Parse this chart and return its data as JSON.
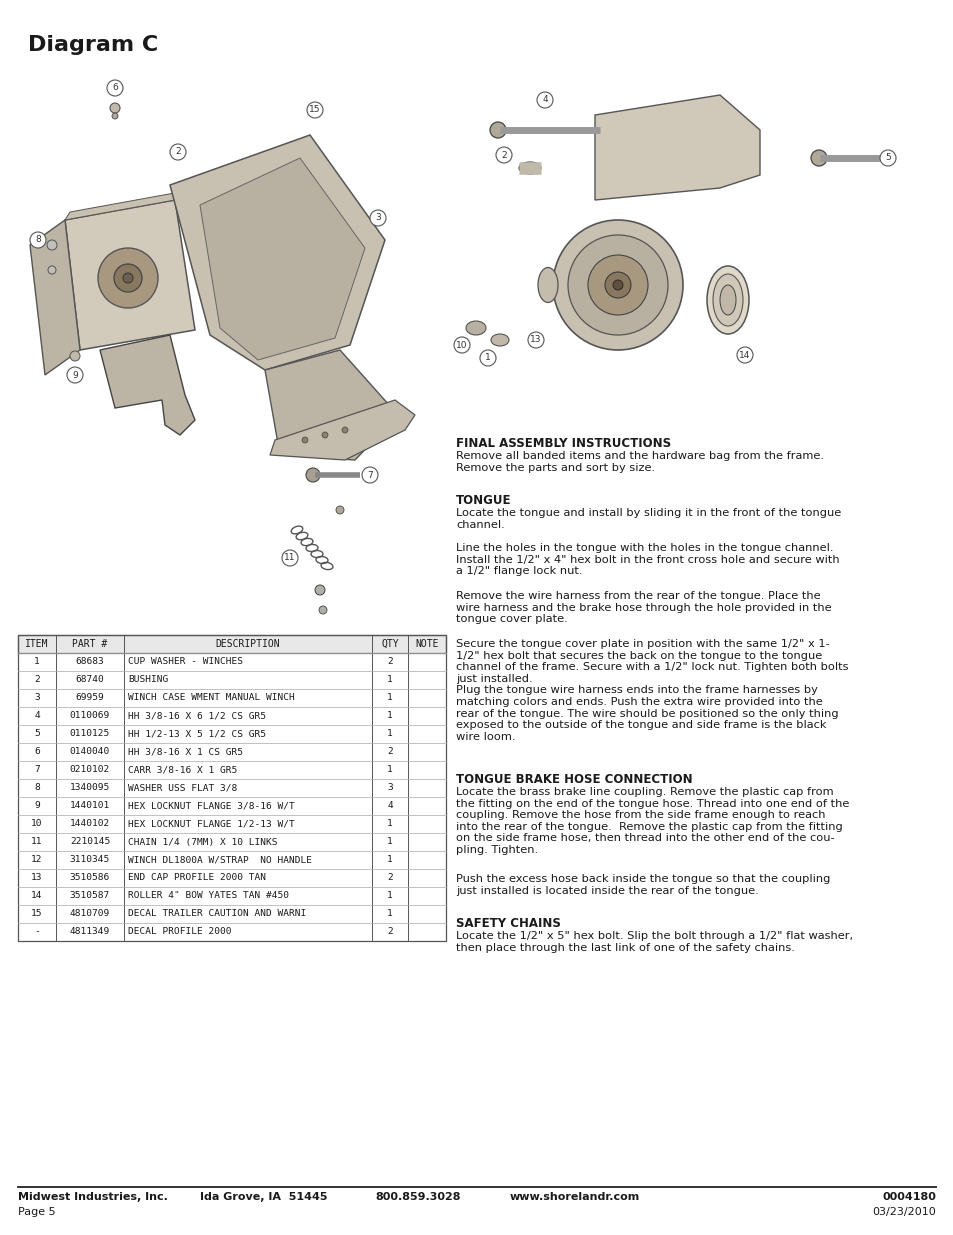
{
  "title": "Diagram C",
  "bg_color": "#ffffff",
  "footer_left1": "Midwest Industries, Inc.",
  "footer_left2": "Ida Grove, IA  51445",
  "footer_left3": "800.859.3028",
  "footer_left4": "www.shorelandr.com",
  "footer_right1": "0004180",
  "footer_right2": "03/23/2010",
  "footer_page": "Page 5",
  "table_headers": [
    "ITEM",
    "PART #",
    "DESCRIPTION",
    "QTY",
    "NOTE"
  ],
  "table_rows": [
    [
      "1",
      "68683",
      "CUP WASHER - WINCHES",
      "2",
      ""
    ],
    [
      "2",
      "68740",
      "BUSHING",
      "1",
      ""
    ],
    [
      "3",
      "69959",
      "WINCH CASE WMENT MANUAL WINCH",
      "1",
      ""
    ],
    [
      "4",
      "0110069",
      "HH 3/8-16 X 6 1/2 CS GR5",
      "1",
      ""
    ],
    [
      "5",
      "0110125",
      "HH 1/2-13 X 5 1/2 CS GR5",
      "1",
      ""
    ],
    [
      "6",
      "0140040",
      "HH 3/8-16 X 1 CS GR5",
      "2",
      ""
    ],
    [
      "7",
      "0210102",
      "CARR 3/8-16 X 1 GR5",
      "1",
      ""
    ],
    [
      "8",
      "1340095",
      "WASHER USS FLAT 3/8",
      "3",
      ""
    ],
    [
      "9",
      "1440101",
      "HEX LOCKNUT FLANGE 3/8-16 W/T",
      "4",
      ""
    ],
    [
      "10",
      "1440102",
      "HEX LOCKNUT FLANGE 1/2-13 W/T",
      "1",
      ""
    ],
    [
      "11",
      "2210145",
      "CHAIN 1/4 (7MM) X 10 LINKS",
      "1",
      ""
    ],
    [
      "12",
      "3110345",
      "WINCH DL1800A W/STRAP  NO HANDLE",
      "1",
      ""
    ],
    [
      "13",
      "3510586",
      "END CAP PROFILE 2000 TAN",
      "2",
      ""
    ],
    [
      "14",
      "3510587",
      "ROLLER 4\" BOW YATES TAN #450",
      "1",
      ""
    ],
    [
      "15",
      "4810709",
      "DECAL TRAILER CAUTION AND WARNI",
      "1",
      ""
    ],
    [
      "-",
      "4811349",
      "DECAL PROFILE 2000",
      "2",
      ""
    ]
  ],
  "section1_title": "FINAL ASSEMBLY INSTRUCTIONS",
  "section1_body1": "Remove all banded items and the hardware bag from the frame.",
  "section1_body2": "Remove the parts and sort by size.",
  "section2_title": "TONGUE",
  "section2_paras": [
    "Locate the tongue and install by sliding it in the front of the tongue\nchannel.",
    "Line the holes in the tongue with the holes in the tongue channel.\nInstall the 1/2\" x 4\" hex bolt in the front cross hole and secure with\na 1/2\" flange lock nut.",
    "Remove the wire harness from the rear of the tongue. Place the\nwire harness and the brake hose through the hole provided in the\ntongue cover plate.",
    "Secure the tongue cover plate in position with the same 1/2\" x 1-\n1/2\" hex bolt that secures the back on the tongue to the tongue\nchannel of the frame. Secure with a 1/2\" lock nut. Tighten both bolts\njust installed.\nPlug the tongue wire harness ends into the frame harnesses by\nmatching colors and ends. Push the extra wire provided into the\nrear of the tongue. The wire should be positioned so the only thing\nexposed to the outside of the tongue and side frame is the black\nwire loom."
  ],
  "section3_title": "TONGUE BRAKE HOSE CONNECTION",
  "section3_paras": [
    "Locate the brass brake line coupling. Remove the plastic cap from\nthe fitting on the end of the tongue hose. Thread into one end of the\ncoupling. Remove the hose from the side frame enough to reach\ninto the rear of the tongue.  Remove the plastic cap from the fitting\non the side frame hose, then thread into the other end of the cou-\npling. Tighten.",
    "Push the excess hose back inside the tongue so that the coupling\njust installed is located inside the rear of the tongue."
  ],
  "section4_title": "SAFETY CHAINS",
  "section4_paras": [
    "Locate the 1/2\" x 5\" hex bolt. Slip the bolt through a 1/2\" flat washer,\nthen place through the last link of one of the safety chains."
  ]
}
